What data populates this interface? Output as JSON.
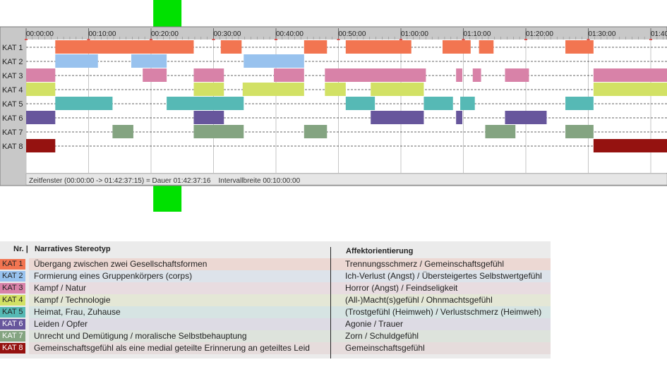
{
  "chart_data": {
    "type": "timeline",
    "x_unit": "HH:MM:SS",
    "xlim": [
      "00:00:00",
      "01:42:37"
    ],
    "tick_labels": [
      "00:00:00",
      "00:10:00",
      "00:20:00",
      "00:30:00",
      "00:40:00",
      "00:50:00",
      "01:00:00",
      "01:10:00",
      "01:20:00",
      "01:30:00",
      "01:40"
    ],
    "categories": [
      "KAT 1",
      "KAT 2",
      "KAT 3",
      "KAT 4",
      "KAT 5",
      "KAT 6",
      "KAT 7",
      "KAT 8"
    ],
    "series": [
      {
        "name": "KAT 1",
        "color": "#f27551",
        "segments": [
          [
            "00:04:40",
            "00:26:50"
          ],
          [
            "00:31:10",
            "00:34:30"
          ],
          [
            "00:44:30",
            "00:48:10"
          ],
          [
            "00:51:10",
            "01:01:40"
          ],
          [
            "01:06:40",
            "01:11:10"
          ],
          [
            "01:12:30",
            "01:14:50"
          ],
          [
            "01:26:20",
            "01:30:50"
          ]
        ]
      },
      {
        "name": "KAT 2",
        "color": "#98c2ee",
        "segments": [
          [
            "00:04:40",
            "00:11:30"
          ],
          [
            "00:16:50",
            "00:22:30"
          ],
          [
            "00:34:50",
            "00:44:30"
          ]
        ]
      },
      {
        "name": "KAT 3",
        "color": "#d882a8",
        "segments": [
          [
            "00:00:00",
            "00:04:40"
          ],
          [
            "00:18:40",
            "00:22:30"
          ],
          [
            "00:26:50",
            "00:31:40"
          ],
          [
            "00:39:40",
            "00:44:30"
          ],
          [
            "00:47:50",
            "01:04:00"
          ],
          [
            "01:08:50",
            "01:09:50"
          ],
          [
            "01:11:30",
            "01:12:50"
          ],
          [
            "01:16:40",
            "01:20:30"
          ],
          [
            "01:30:50",
            "01:42:37"
          ]
        ]
      },
      {
        "name": "KAT 4",
        "color": "#d2e165",
        "segments": [
          [
            "00:00:00",
            "00:04:40"
          ],
          [
            "00:26:50",
            "00:31:40"
          ],
          [
            "00:34:40",
            "00:44:30"
          ],
          [
            "00:47:50",
            "00:51:10"
          ],
          [
            "00:55:10",
            "01:03:40"
          ],
          [
            "01:30:50",
            "01:42:37"
          ]
        ]
      },
      {
        "name": "KAT 5",
        "color": "#56b9b5",
        "segments": [
          [
            "00:04:40",
            "00:13:50"
          ],
          [
            "00:22:30",
            "00:34:50"
          ],
          [
            "00:51:10",
            "00:55:50"
          ],
          [
            "01:03:40",
            "01:08:20"
          ],
          [
            "01:09:30",
            "01:11:50"
          ],
          [
            "01:26:20",
            "01:30:50"
          ]
        ]
      },
      {
        "name": "KAT 6",
        "color": "#67569c",
        "segments": [
          [
            "00:00:00",
            "00:04:40"
          ],
          [
            "00:26:50",
            "00:31:40"
          ],
          [
            "00:55:10",
            "01:03:40"
          ],
          [
            "01:08:50",
            "01:09:50"
          ],
          [
            "01:16:40",
            "01:23:20"
          ]
        ]
      },
      {
        "name": "KAT 7",
        "color": "#84a481",
        "segments": [
          [
            "00:13:50",
            "00:17:10"
          ],
          [
            "00:26:50",
            "00:34:50"
          ],
          [
            "00:44:30",
            "00:48:10"
          ],
          [
            "01:13:30",
            "01:18:20"
          ],
          [
            "01:26:20",
            "01:30:50"
          ]
        ]
      },
      {
        "name": "KAT 8",
        "color": "#951210",
        "segments": [
          [
            "00:00:00",
            "00:04:40"
          ],
          [
            "01:30:50",
            "01:42:37"
          ]
        ]
      }
    ],
    "status": "Zeitfenster (00:00:00 -> 01:42:37:15) = Dauer 01:42:37:16    Intervallbreite 00:10:00:00",
    "marker_time": "00:22:30",
    "marker_color": "#00e100"
  },
  "legend": {
    "header_nr": "Nr.",
    "header_narrative": "Narratives Stereotyp",
    "header_affect": "Affektorientierung",
    "rows": [
      {
        "label": "KAT 1",
        "label_color": "#f27551",
        "bg": "#ecd8d3",
        "narrative": "Übergang zwischen zwei Gesellschaftsformen",
        "affect": "Trennungsschmerz / Gemeinschaftsgefühl"
      },
      {
        "label": "KAT 2",
        "label_color": "#98c2ee",
        "bg": "#dde3ea",
        "narrative": "Formierung eines Gruppenkörpers (corps)",
        "affect": "Ich-Verlust (Angst) / Übersteigertes Selbstwertgefühl"
      },
      {
        "label": "KAT 3",
        "label_color": "#d882a8",
        "bg": "#e8dce0",
        "narrative": "Kampf / Natur",
        "affect": "Horror (Angst) / Feindseligkeit"
      },
      {
        "label": "KAT 4",
        "label_color": "#d2e165",
        "bg": "#e4e7d6",
        "narrative": "Kampf / Technologie",
        "affect": "(All-)Macht(s)gefühl / Ohnmachtsgefühl"
      },
      {
        "label": "KAT 5",
        "label_color": "#56b9b5",
        "bg": "#d6e4e3",
        "narrative": "Heimat, Frau, Zuhause",
        "affect": "(Trostgefühl (Heimweh) / Verlustschmerz (Heimweh)"
      },
      {
        "label": "KAT 6",
        "label_color": "#67569c",
        "bg": "#dddbe4",
        "narrative": "Leiden / Opfer",
        "affect": "Agonie / Trauer"
      },
      {
        "label": "KAT 7",
        "label_color": "#84a481",
        "bg": "#dde3dc",
        "narrative": "Unrecht und Demütigung / moralische Selbstbehauptung",
        "affect": "Zorn / Schuldgefühl"
      },
      {
        "label": "KAT 8",
        "label_color": "#951210",
        "bg": "#e6dcdc",
        "narrative": "Gemeinschaftsgefühl als eine medial geteilte Erinnerung an geteiltes Leid",
        "affect": "Gemeinschaftsgefühl"
      }
    ]
  }
}
